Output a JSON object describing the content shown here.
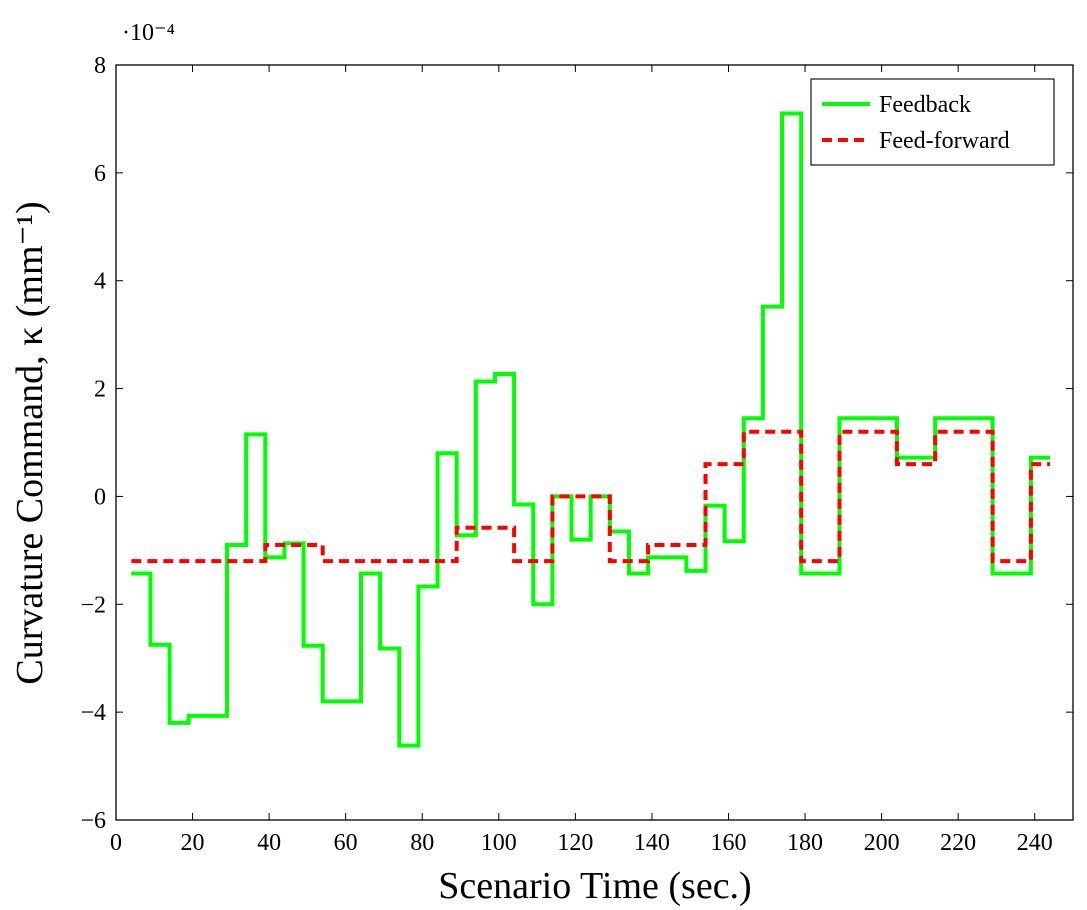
{
  "chart_data": {
    "type": "line",
    "step": true,
    "title": "",
    "xlabel": "Scenario Time (sec.)",
    "ylabel": "Curvature Command, κ (mm⁻¹)",
    "y_multiplier_label": "·10⁻⁴",
    "xlim": [
      0,
      250
    ],
    "ylim": [
      -6,
      8
    ],
    "x_ticks": [
      0,
      20,
      40,
      60,
      80,
      100,
      120,
      140,
      160,
      180,
      200,
      220,
      240
    ],
    "y_ticks": [
      -6,
      -4,
      -2,
      0,
      2,
      4,
      6,
      8
    ],
    "x_tick_labels": [
      "0",
      "20",
      "40",
      "60",
      "80",
      "100",
      "120",
      "140",
      "160",
      "180",
      "200",
      "220",
      "240"
    ],
    "y_tick_labels": [
      "−6",
      "−4",
      "−2",
      "0",
      "2",
      "4",
      "6",
      "8"
    ],
    "legend_position": "top-right",
    "series": [
      {
        "name": "Feedback",
        "color": "#00ff00",
        "style": "solid",
        "points": [
          [
            4,
            -1.43
          ],
          [
            9,
            -1.43
          ],
          [
            9,
            -2.75
          ],
          [
            14,
            -2.75
          ],
          [
            14,
            -4.2
          ],
          [
            19,
            -4.2
          ],
          [
            19,
            -4.07
          ],
          [
            29,
            -4.07
          ],
          [
            29,
            -0.9
          ],
          [
            34,
            -0.9
          ],
          [
            34,
            1.15
          ],
          [
            39,
            1.15
          ],
          [
            39,
            -1.13
          ],
          [
            44,
            -1.13
          ],
          [
            44,
            -0.87
          ],
          [
            49,
            -0.87
          ],
          [
            49,
            -2.77
          ],
          [
            54,
            -2.77
          ],
          [
            54,
            -3.8
          ],
          [
            64,
            -3.8
          ],
          [
            64,
            -1.43
          ],
          [
            69,
            -1.43
          ],
          [
            69,
            -2.82
          ],
          [
            74,
            -2.82
          ],
          [
            74,
            -4.62
          ],
          [
            79,
            -4.62
          ],
          [
            79,
            -1.67
          ],
          [
            84,
            -1.67
          ],
          [
            84,
            0.8
          ],
          [
            89,
            0.8
          ],
          [
            89,
            -0.72
          ],
          [
            94,
            -0.72
          ],
          [
            94,
            2.13
          ],
          [
            99,
            2.13
          ],
          [
            99,
            2.27
          ],
          [
            104,
            2.27
          ],
          [
            104,
            -0.15
          ],
          [
            109,
            -0.15
          ],
          [
            109,
            -2.0
          ],
          [
            114,
            -2.0
          ],
          [
            114,
            0.0
          ],
          [
            119,
            0.0
          ],
          [
            119,
            -0.8
          ],
          [
            124,
            -0.8
          ],
          [
            124,
            0.0
          ],
          [
            129,
            0.0
          ],
          [
            129,
            -0.65
          ],
          [
            134,
            -0.65
          ],
          [
            134,
            -1.43
          ],
          [
            139,
            -1.43
          ],
          [
            139,
            -1.13
          ],
          [
            149,
            -1.13
          ],
          [
            149,
            -1.38
          ],
          [
            154,
            -1.38
          ],
          [
            154,
            -0.17
          ],
          [
            159,
            -0.17
          ],
          [
            159,
            -0.83
          ],
          [
            164,
            -0.83
          ],
          [
            164,
            1.45
          ],
          [
            169,
            1.45
          ],
          [
            169,
            3.52
          ],
          [
            174,
            3.52
          ],
          [
            174,
            7.1
          ],
          [
            179,
            7.1
          ],
          [
            179,
            -1.43
          ],
          [
            189,
            -1.43
          ],
          [
            189,
            1.45
          ],
          [
            204,
            1.45
          ],
          [
            204,
            0.72
          ],
          [
            214,
            0.72
          ],
          [
            214,
            1.45
          ],
          [
            229,
            1.45
          ],
          [
            229,
            -1.43
          ],
          [
            239,
            -1.43
          ],
          [
            239,
            0.72
          ],
          [
            244,
            0.72
          ]
        ]
      },
      {
        "name": "Feed-forward",
        "color": "#ff0000",
        "style": "dashed",
        "points": [
          [
            4,
            -1.2
          ],
          [
            39,
            -1.2
          ],
          [
            39,
            -0.9
          ],
          [
            54,
            -0.9
          ],
          [
            54,
            -1.2
          ],
          [
            89,
            -1.2
          ],
          [
            89,
            -0.58
          ],
          [
            104,
            -0.58
          ],
          [
            104,
            -1.2
          ],
          [
            114,
            -1.2
          ],
          [
            114,
            0.0
          ],
          [
            129,
            0.0
          ],
          [
            129,
            -1.2
          ],
          [
            139,
            -1.2
          ],
          [
            139,
            -0.9
          ],
          [
            154,
            -0.9
          ],
          [
            154,
            0.6
          ],
          [
            164,
            0.6
          ],
          [
            164,
            1.2
          ],
          [
            179,
            1.2
          ],
          [
            179,
            -1.2
          ],
          [
            189,
            -1.2
          ],
          [
            189,
            1.2
          ],
          [
            204,
            1.2
          ],
          [
            204,
            0.6
          ],
          [
            214,
            0.6
          ],
          [
            214,
            1.2
          ],
          [
            229,
            1.2
          ],
          [
            229,
            -1.2
          ],
          [
            239,
            -1.2
          ],
          [
            239,
            0.6
          ],
          [
            244,
            0.6
          ]
        ]
      }
    ]
  }
}
